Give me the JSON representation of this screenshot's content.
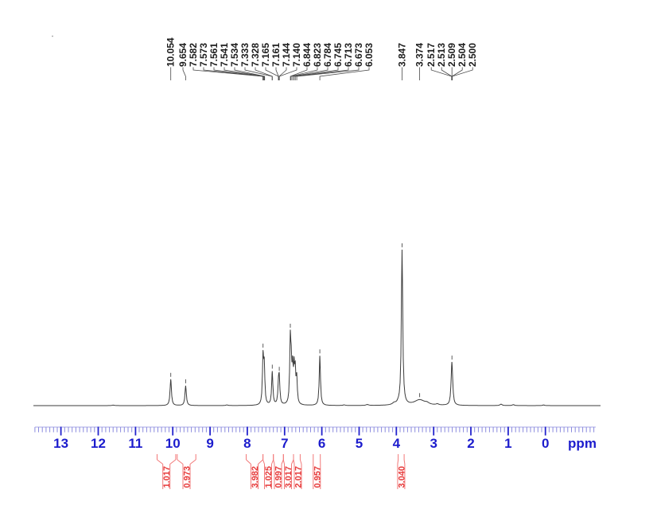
{
  "chart_data": {
    "type": "line",
    "description": "1H NMR spectrum trace with peak picking and integrals",
    "xlabel": "ppm",
    "x_axis": {
      "from": 13.7,
      "to": -1.35,
      "direction": "reversed",
      "major_ticks": [
        13,
        12,
        11,
        10,
        9,
        8,
        7,
        6,
        5,
        4,
        3,
        2,
        1,
        0
      ],
      "minor_step": 0.1,
      "grid": false
    },
    "peak_labels": [
      "10.054",
      "9.654",
      "7.582",
      "7.573",
      "7.561",
      "7.541",
      "7.534",
      "7.333",
      "7.328",
      "7.165",
      "7.161",
      "7.144",
      "7.140",
      "6.844",
      "6.823",
      "6.784",
      "6.745",
      "6.713",
      "6.673",
      "6.053",
      "3.847",
      "3.374",
      "2.517",
      "2.513",
      "2.509",
      "2.504",
      "2.500"
    ],
    "integrals": [
      {
        "value": "1.017",
        "from": 10.42,
        "to": 9.92
      },
      {
        "value": "0.973",
        "from": 9.88,
        "to": 9.38
      },
      {
        "value": "3.982",
        "from": 8.03,
        "to": 7.58
      },
      {
        "value": "1.025",
        "from": 7.58,
        "to": 7.3
      },
      {
        "value": "0.997",
        "from": 7.3,
        "to": 7.03
      },
      {
        "value": "3.017",
        "from": 7.03,
        "to": 6.76
      },
      {
        "value": "2.017",
        "from": 6.76,
        "to": 6.58
      },
      {
        "value": "0.957",
        "from": 6.23,
        "to": 6.04
      },
      {
        "value": "3.040",
        "from": 3.95,
        "to": 3.79
      }
    ],
    "trace_peaks": [
      [
        10.054,
        0.17,
        1.0
      ],
      [
        9.654,
        0.128,
        1.0
      ],
      [
        7.578,
        0.3,
        0.85
      ],
      [
        7.545,
        0.24,
        0.85
      ],
      [
        7.33,
        0.215,
        0.9
      ],
      [
        7.163,
        0.115,
        0.9
      ],
      [
        7.142,
        0.15,
        0.9
      ],
      [
        6.846,
        0.4,
        0.85
      ],
      [
        6.82,
        0.2,
        0.8
      ],
      [
        6.784,
        0.205,
        0.8
      ],
      [
        6.745,
        0.21,
        0.8
      ],
      [
        6.713,
        0.19,
        0.8
      ],
      [
        6.673,
        0.16,
        0.8
      ],
      [
        6.053,
        0.32,
        0.9
      ],
      [
        3.847,
        1.0,
        1.0
      ],
      [
        3.374,
        0.036,
        8.0
      ],
      [
        2.528,
        0.05,
        1.0
      ],
      [
        2.509,
        0.225,
        0.95
      ],
      [
        2.489,
        0.05,
        1.0
      ],
      [
        4.78,
        0.006,
        2.0
      ],
      [
        4.06,
        0.011,
        2.5
      ],
      [
        3.95,
        0.008,
        1.5
      ],
      [
        3.18,
        0.009,
        3.0
      ],
      [
        2.9,
        0.007,
        2.0
      ],
      [
        1.19,
        0.009,
        1.6
      ],
      [
        0.86,
        0.006,
        1.6
      ],
      [
        5.4,
        0.004,
        1.6
      ],
      [
        8.55,
        0.004,
        1.6
      ],
      [
        11.6,
        0.003,
        2.0
      ],
      [
        0.05,
        0.004,
        1.6
      ]
    ],
    "picked_peak_markers": [
      10.054,
      9.654,
      7.578,
      7.33,
      7.142,
      6.846,
      6.053,
      3.847,
      3.374,
      2.509
    ],
    "colors": {
      "axis_major": "#2323cd",
      "axis_minor": "#8a8ade",
      "axis_text": "#1c1ccd",
      "integral_text": "#e63b3b",
      "integral_line": "#f27878",
      "trace": "#3c3c3c",
      "peak_label_text": "#1c1c1c",
      "connector": "#4a4a4a"
    }
  }
}
